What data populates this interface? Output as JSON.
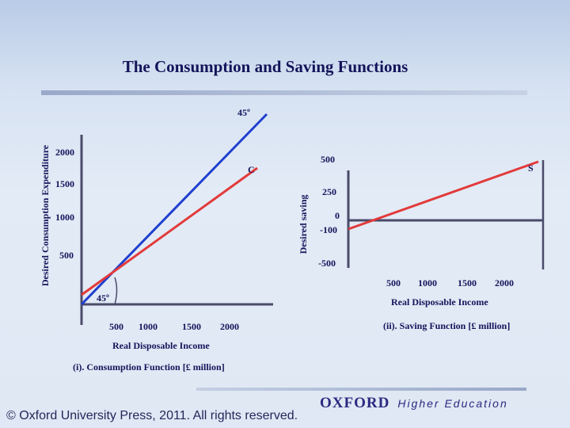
{
  "slide": {
    "title": "The Consumption and Saving Functions",
    "copyright": "© Oxford University Press, 2011. All rights reserved.",
    "logo_word": "OXFORD",
    "logo_tagline": "Higher Education"
  },
  "colors": {
    "axis": "#4a4a6a",
    "forty_five_line": "#1f3fcf",
    "function_line": "#e23a3a",
    "text": "#14145a"
  },
  "chart_data": [
    {
      "type": "line",
      "caption": "(i). Consumption Function [£ million]",
      "xlabel": "Real Disposable Income",
      "ylabel": "Desired Consumption Expenditure",
      "x_ticks": [
        "500",
        "1000",
        "1500",
        "2000"
      ],
      "y_ticks": [
        "500",
        "1000",
        "1500",
        "2000"
      ],
      "xlim": [
        0,
        2300
      ],
      "ylim": [
        0,
        2300
      ],
      "series": [
        {
          "name": "45º",
          "points": [
            [
              0,
              0
            ],
            [
              2300,
              2300
            ]
          ]
        },
        {
          "name": "C",
          "points": [
            [
              0,
              400
            ],
            [
              2150,
              2070
            ]
          ]
        }
      ],
      "annotations": [
        "45º",
        "45º",
        "C"
      ]
    },
    {
      "type": "line",
      "caption": "(ii). Saving Function [£ million]",
      "xlabel": "Real Disposable Income",
      "ylabel": "Desired saving",
      "x_ticks": [
        "500",
        "1000",
        "1500",
        "2000"
      ],
      "y_ticks": [
        "500",
        "250",
        "0",
        "-100",
        "-500"
      ],
      "series": [
        {
          "name": "S",
          "points": [
            [
              0,
              -100
            ],
            [
              2300,
              500
            ]
          ]
        }
      ],
      "annotations": [
        "S"
      ]
    }
  ]
}
